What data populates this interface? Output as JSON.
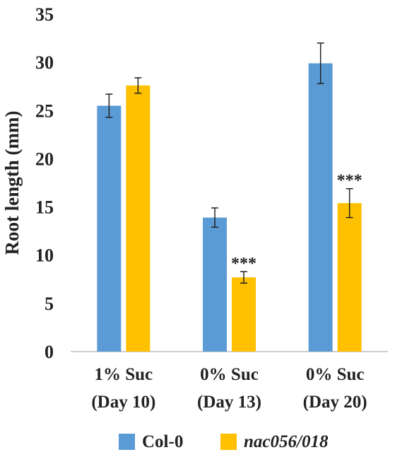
{
  "chart_data": {
    "type": "bar",
    "title": "",
    "xlabel": "",
    "ylabel": "Root length (mm)",
    "ylim": [
      0,
      35
    ],
    "yticks": [
      0,
      5,
      10,
      15,
      20,
      25,
      30,
      35
    ],
    "grid": false,
    "legend_position": "bottom",
    "categories": [
      {
        "line1": "1% Suc",
        "line2": "(Day 10)"
      },
      {
        "line1": "0% Suc",
        "line2": "(Day 13)"
      },
      {
        "line1": "0% Suc",
        "line2": "(Day 20)"
      }
    ],
    "series": [
      {
        "name": "Col-0",
        "color": "#5b9bd5",
        "italic": false,
        "values": [
          25.5,
          13.9,
          29.9
        ],
        "errors": [
          1.2,
          1.0,
          2.1
        ],
        "annotations": [
          "",
          "",
          ""
        ]
      },
      {
        "name": "nac056/018",
        "color": "#ffc000",
        "italic": true,
        "values": [
          27.6,
          7.7,
          15.4
        ],
        "errors": [
          0.8,
          0.6,
          1.5
        ],
        "annotations": [
          "",
          "***",
          "***"
        ]
      }
    ]
  }
}
